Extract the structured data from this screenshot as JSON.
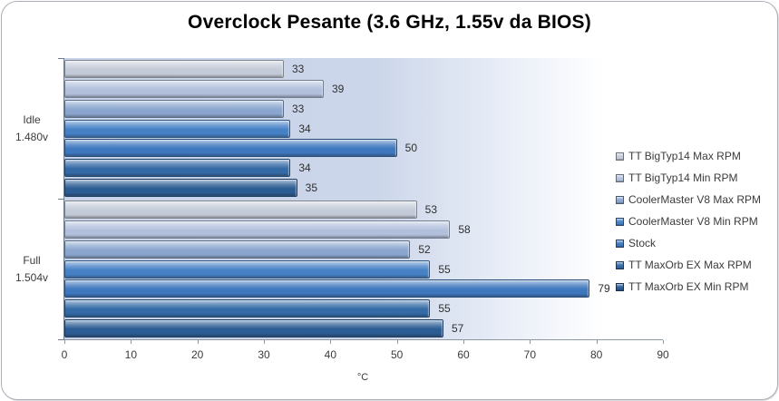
{
  "chart_data": {
    "type": "bar",
    "orientation": "horizontal",
    "title": "Overclock Pesante (3.6 GHz, 1.55v da BIOS)",
    "xlabel": "°C",
    "xlim": [
      0,
      90
    ],
    "xticks": [
      0,
      10,
      20,
      30,
      40,
      50,
      60,
      70,
      80,
      90
    ],
    "grid": false,
    "legend_position": "right",
    "data_labels": true,
    "categories": [
      {
        "lines": [
          "Idle",
          "1.480v"
        ]
      },
      {
        "lines": [
          "Full",
          "1.504v"
        ]
      }
    ],
    "series": [
      {
        "name": "TT BigTyp14 Max RPM",
        "values": [
          33,
          53
        ],
        "color": "#c4cbd8"
      },
      {
        "name": "TT BigTyp14 Min RPM",
        "values": [
          39,
          58
        ],
        "color": "#b2c0dc"
      },
      {
        "name": "CoolerMaster V8 Max RPM",
        "values": [
          33,
          52
        ],
        "color": "#8ba6ce"
      },
      {
        "name": "CoolerMaster V8 Min RPM",
        "values": [
          34,
          55
        ],
        "color": "#4681c6"
      },
      {
        "name": "Stock",
        "values": [
          50,
          79
        ],
        "color": "#3e77bd"
      },
      {
        "name": "TT MaxOrb EX Max RPM",
        "values": [
          34,
          55
        ],
        "color": "#346aa6"
      },
      {
        "name": "TT MaxOrb EX Min RPM",
        "values": [
          35,
          57
        ],
        "color": "#2c5c94"
      }
    ],
    "plot_bg_left_color": "#ccd6ea",
    "plot_bg_right_color": "#ffffff",
    "frame_border_color": "#a9aeb6"
  }
}
